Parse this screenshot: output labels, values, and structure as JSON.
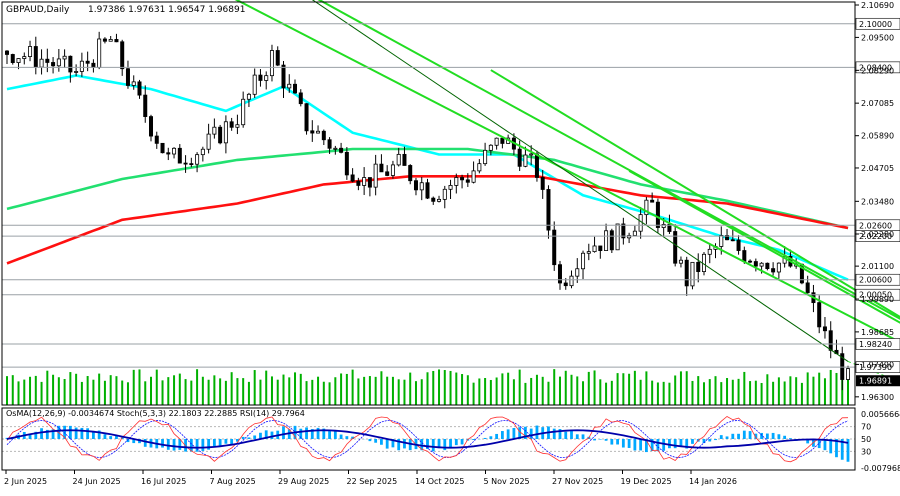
{
  "chart_data": {
    "type": "candlestick",
    "title": "GBPAUD,Daily",
    "ohlc_readout": "1.97386 1.97631 1.96547 1.96891",
    "price_ylim": [
      1.96,
      2.108
    ],
    "price_ticks": [
      "2.10690",
      "2.09500",
      "2.08290",
      "2.07085",
      "2.05890",
      "2.04705",
      "2.03480",
      "2.02280",
      "2.01100",
      "1.99890",
      "1.98685",
      "1.97490",
      "1.96300"
    ],
    "levels": [
      {
        "label": "2.10000",
        "value": 2.1
      },
      {
        "label": "2.08400",
        "value": 2.084
      },
      {
        "label": "2.02600",
        "value": 2.026
      },
      {
        "label": "2.02200",
        "value": 2.022
      },
      {
        "label": "2.00600",
        "value": 2.006
      },
      {
        "label": "2.00050",
        "value": 2.0005
      },
      {
        "label": "1.98240",
        "value": 1.9824
      },
      {
        "label": "1.97390",
        "value": 1.9739
      }
    ],
    "current_price": {
      "label": "1.96891",
      "value": 1.96891
    },
    "x_labels": [
      "2 Jun 2025",
      "24 Jun 2025",
      "16 Jul 2025",
      "7 Aug 2025",
      "29 Aug 2025",
      "22 Sep 2025",
      "14 Oct 2025",
      "5 Nov 2025",
      "27 Nov 2025",
      "19 Dec 2025",
      "14 Jan 2026"
    ],
    "close_anchors": [
      [
        0,
        2.09
      ],
      [
        6,
        2.087
      ],
      [
        12,
        2.082
      ],
      [
        18,
        2.094
      ],
      [
        22,
        2.075
      ],
      [
        28,
        2.05
      ],
      [
        34,
        2.054
      ],
      [
        40,
        2.066
      ],
      [
        46,
        2.088
      ],
      [
        52,
        2.063
      ],
      [
        56,
        2.056
      ],
      [
        62,
        2.042
      ],
      [
        68,
        2.048
      ],
      [
        74,
        2.038
      ],
      [
        80,
        2.044
      ],
      [
        86,
        2.058
      ],
      [
        92,
        2.046
      ],
      [
        96,
        2.004
      ],
      [
        100,
        2.018
      ],
      [
        106,
        2.022
      ],
      [
        112,
        2.033
      ],
      [
        118,
        2.006
      ],
      [
        124,
        2.02
      ],
      [
        130,
        2.014
      ],
      [
        136,
        2.011
      ],
      [
        138,
        2.005
      ],
      [
        142,
        1.985
      ],
      [
        146,
        1.969
      ]
    ],
    "ma_series": [
      {
        "color": "#00ffff",
        "anchors": [
          [
            0,
            2.076
          ],
          [
            12,
            2.081
          ],
          [
            25,
            2.076
          ],
          [
            38,
            2.068
          ],
          [
            48,
            2.077
          ],
          [
            60,
            2.06
          ],
          [
            75,
            2.052
          ],
          [
            88,
            2.052
          ],
          [
            100,
            2.037
          ],
          [
            112,
            2.03
          ],
          [
            124,
            2.022
          ],
          [
            134,
            2.017
          ],
          [
            146,
            2.006
          ]
        ]
      },
      {
        "color": "#22e070",
        "anchors": [
          [
            0,
            2.032
          ],
          [
            20,
            2.043
          ],
          [
            40,
            2.05
          ],
          [
            60,
            2.054
          ],
          [
            80,
            2.054
          ],
          [
            95,
            2.05
          ],
          [
            110,
            2.041
          ],
          [
            125,
            2.035
          ],
          [
            146,
            2.025
          ]
        ]
      },
      {
        "color": "#ff1010",
        "anchors": [
          [
            0,
            2.012
          ],
          [
            20,
            2.028
          ],
          [
            40,
            2.034
          ],
          [
            55,
            2.041
          ],
          [
            70,
            2.044
          ],
          [
            92,
            2.044
          ],
          [
            110,
            2.037
          ],
          [
            125,
            2.034
          ],
          [
            146,
            2.025
          ]
        ]
      }
    ],
    "trendlines": [
      {
        "color": "#22dd22",
        "points": [
          [
            36,
            2.113
          ],
          [
            178,
            1.958
          ]
        ]
      },
      {
        "color": "#22dd22",
        "points": [
          [
            48,
            2.116
          ],
          [
            178,
            1.965
          ]
        ]
      },
      {
        "color": "#22dd22",
        "points": [
          [
            84,
            2.083
          ],
          [
            178,
            1.963
          ]
        ]
      },
      {
        "color": "#22dd22",
        "points": [
          [
            108,
            2.046
          ],
          [
            178,
            1.963
          ]
        ]
      },
      {
        "color": "#006400",
        "points": [
          [
            48,
            2.116
          ],
          [
            146,
            1.976
          ]
        ]
      }
    ],
    "volume_bars": "green histogram",
    "indicator_title": "OsMA(12,26,9) -0.0034674  Stoch(5,3,3) 22.1803 22.2885  RSI(14) 29.7964",
    "indicator_ticks": [
      "0.0056664",
      "70",
      "50",
      "30",
      "-0.0079686"
    ],
    "indicator_levels": [
      70,
      50,
      30
    ],
    "colors": {
      "up": "#000000",
      "down": "#000000",
      "grid": "#c8c8c8",
      "osma": "#00a8ff",
      "rsi": "#0000aa",
      "stoch_main": "#ff3030",
      "stoch_signal": "#1010ff",
      "volume": "#00b000"
    }
  }
}
